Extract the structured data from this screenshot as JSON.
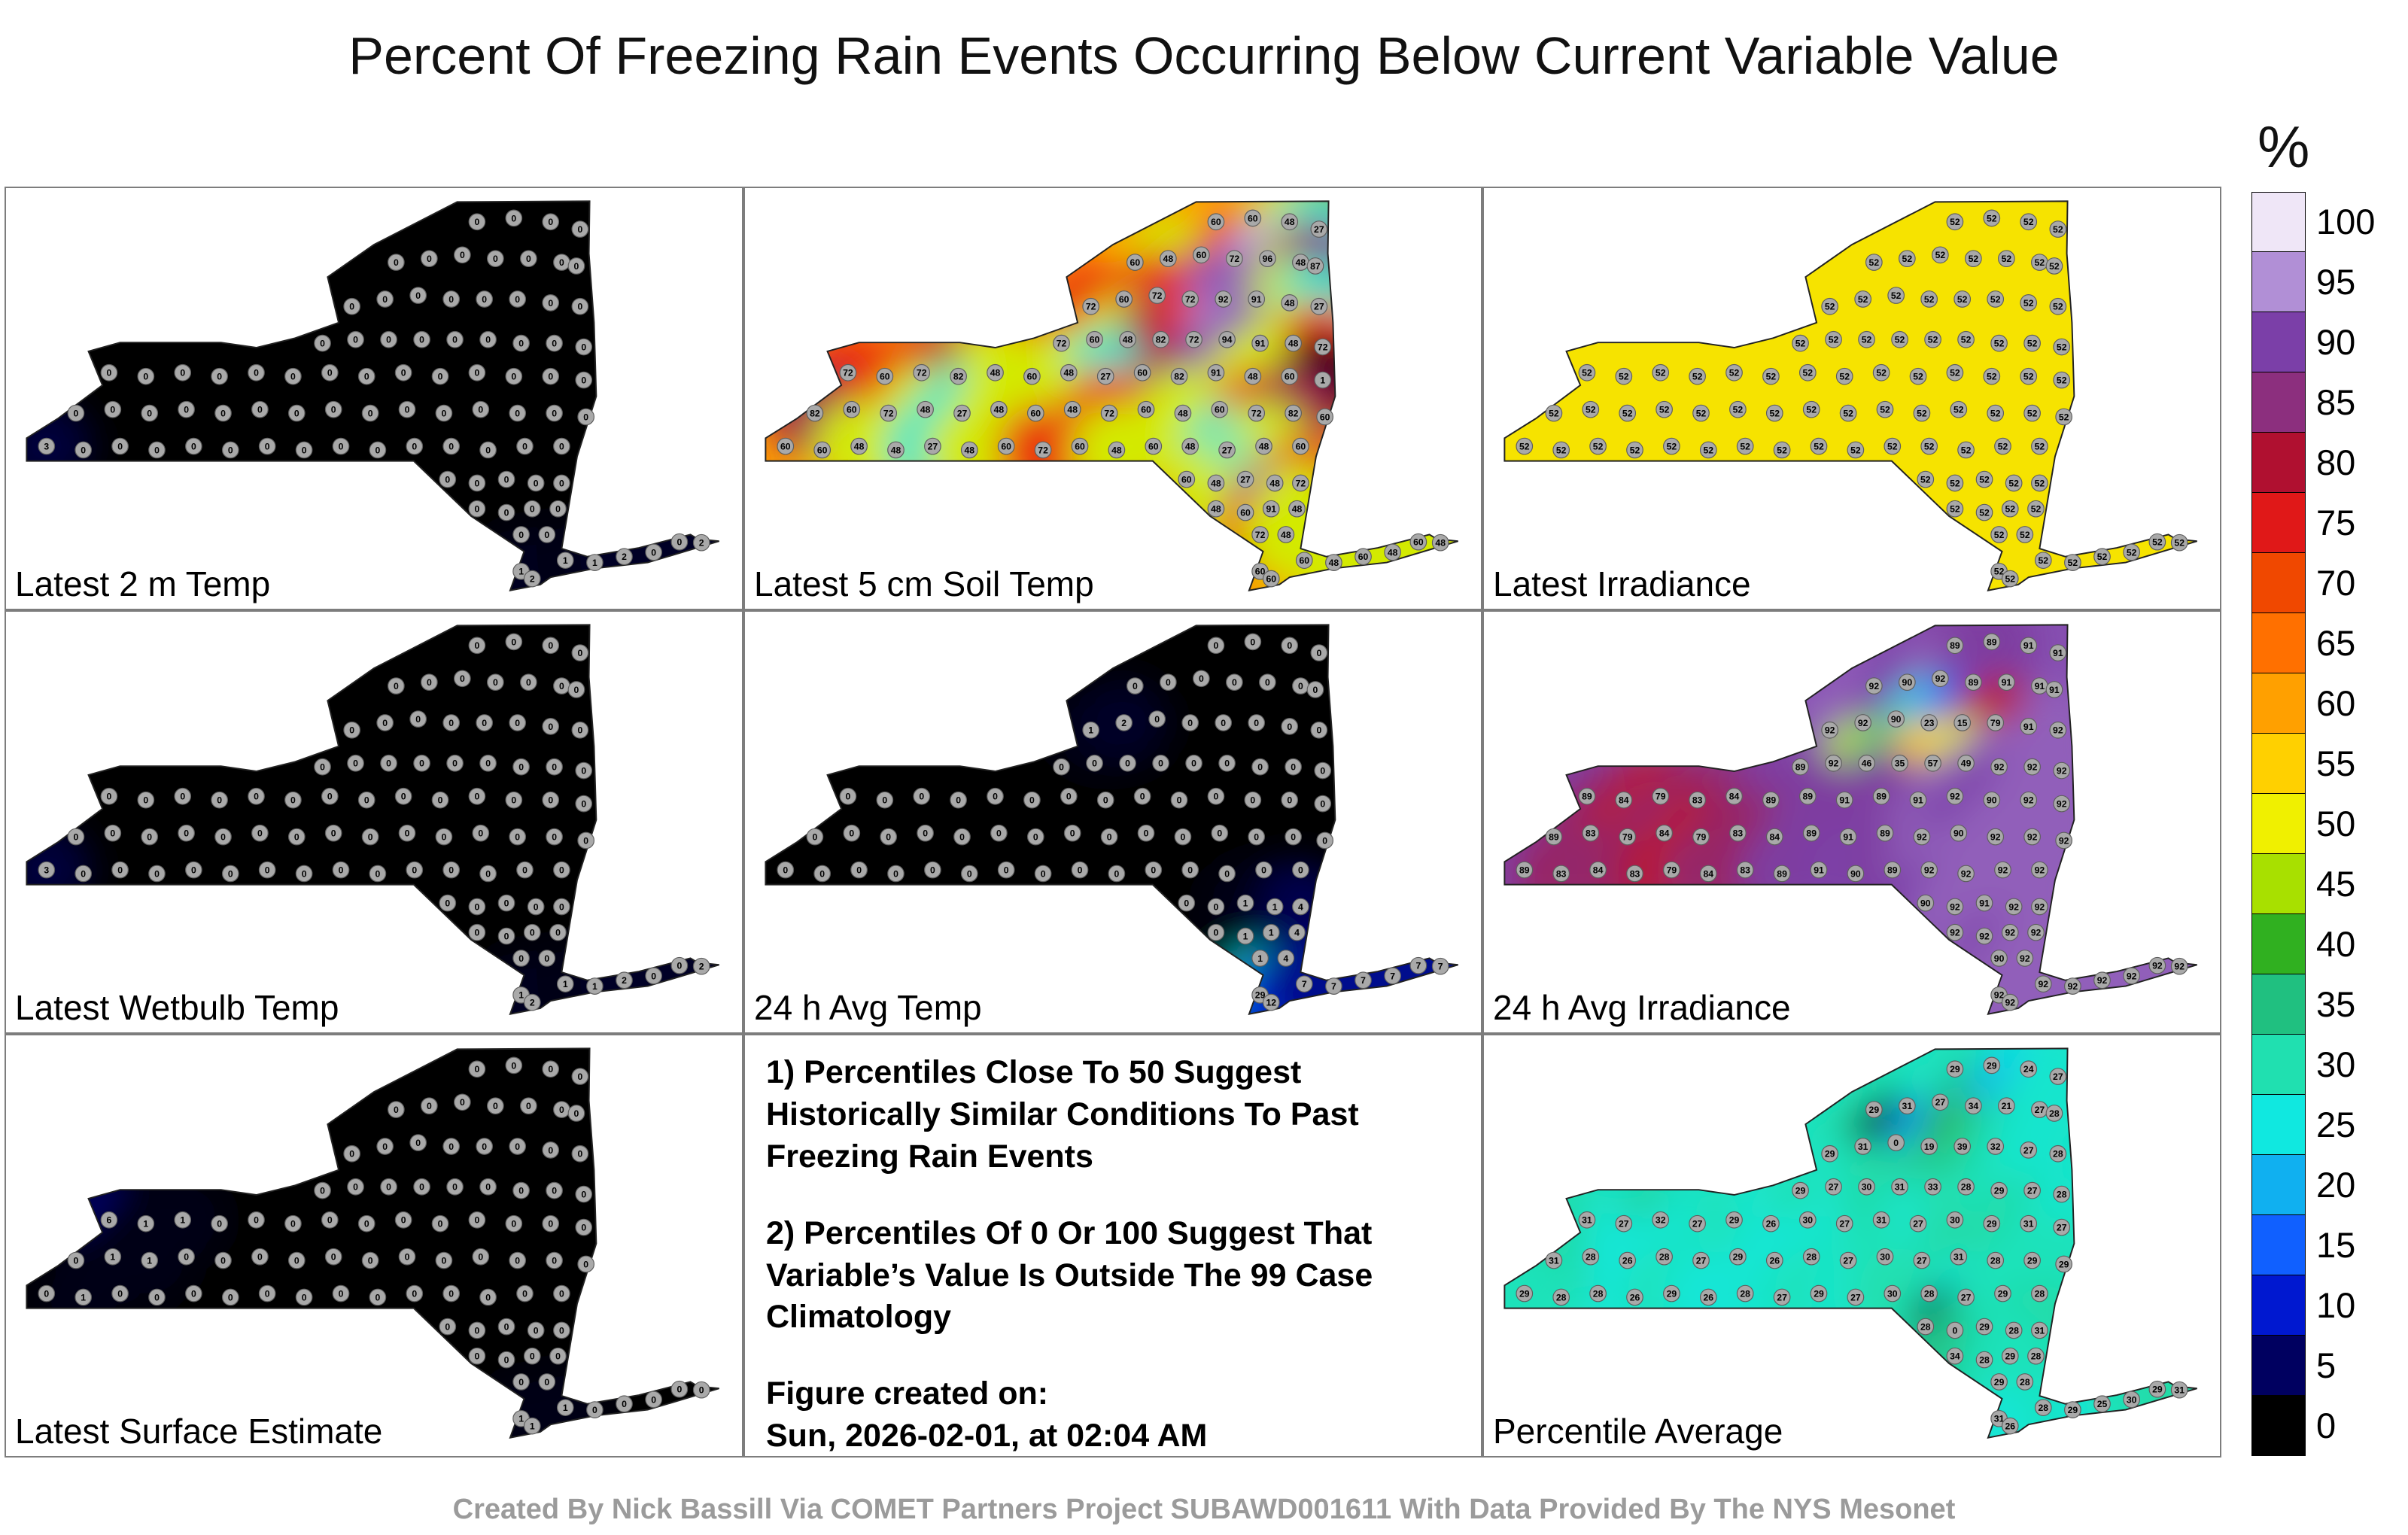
{
  "title": "Percent Of Freezing Rain Events Occurring Below Current Variable Value",
  "credit": "Created By Nick Bassill Via COMET Partners Project SUBAWD001611 With Data Provided By The NYS Mesonet",
  "colorbar": {
    "label": "%",
    "ticks": [
      100,
      95,
      90,
      85,
      80,
      75,
      70,
      65,
      60,
      55,
      50,
      45,
      40,
      35,
      30,
      25,
      20,
      15,
      10,
      5,
      0
    ]
  },
  "notes": {
    "point1": "1) Percentiles Close To 50 Suggest Historically Similar Conditions To Past Freezing Rain Events",
    "point2": "2) Percentiles Of 0 Or 100 Suggest That Variable’s Value Is Outside The 99 Case Climatology",
    "created_label": "Figure created on:",
    "created_value": "Sun, 2026-02-01, at 02:04 AM"
  },
  "chart_data": {
    "type": "heatmap",
    "title": "Percent Of Freezing Rain Events Occurring Below Current Variable Value",
    "subtitle": "Station percentile maps of New York State (NYS Mesonet), 3x3 panel grid with shared 0-100% colorbar",
    "legend_position": "right",
    "value_range": [
      0,
      100
    ],
    "colormap_stops": [
      [
        0,
        "#000000"
      ],
      [
        5,
        "#000060"
      ],
      [
        10,
        "#0018d0"
      ],
      [
        15,
        "#1060ff"
      ],
      [
        20,
        "#10b0f0"
      ],
      [
        25,
        "#10e8e0"
      ],
      [
        30,
        "#20e0b0"
      ],
      [
        35,
        "#20c080"
      ],
      [
        40,
        "#30b020"
      ],
      [
        45,
        "#a8e000"
      ],
      [
        50,
        "#f0f000"
      ],
      [
        55,
        "#ffd000"
      ],
      [
        60,
        "#ffa000"
      ],
      [
        65,
        "#ff7000"
      ],
      [
        70,
        "#f04800"
      ],
      [
        75,
        "#e01818"
      ],
      [
        80,
        "#b01030"
      ],
      [
        85,
        "#8c2f7e"
      ],
      [
        90,
        "#7b3fa8"
      ],
      [
        95,
        "#b18fd6"
      ],
      [
        100,
        "#efe6f7"
      ]
    ],
    "station_positions": [
      [
        640,
        45
      ],
      [
        690,
        40
      ],
      [
        740,
        45
      ],
      [
        780,
        55
      ],
      [
        530,
        100
      ],
      [
        575,
        95
      ],
      [
        620,
        90
      ],
      [
        665,
        95
      ],
      [
        710,
        95
      ],
      [
        755,
        100
      ],
      [
        775,
        105
      ],
      [
        470,
        160
      ],
      [
        515,
        150
      ],
      [
        560,
        145
      ],
      [
        605,
        150
      ],
      [
        650,
        150
      ],
      [
        695,
        150
      ],
      [
        740,
        155
      ],
      [
        780,
        160
      ],
      [
        430,
        210
      ],
      [
        475,
        205
      ],
      [
        520,
        205
      ],
      [
        565,
        205
      ],
      [
        610,
        205
      ],
      [
        655,
        205
      ],
      [
        700,
        210
      ],
      [
        745,
        210
      ],
      [
        785,
        215
      ],
      [
        140,
        250
      ],
      [
        190,
        255
      ],
      [
        240,
        250
      ],
      [
        290,
        255
      ],
      [
        340,
        250
      ],
      [
        390,
        255
      ],
      [
        440,
        250
      ],
      [
        490,
        255
      ],
      [
        540,
        250
      ],
      [
        590,
        255
      ],
      [
        640,
        250
      ],
      [
        690,
        255
      ],
      [
        740,
        255
      ],
      [
        785,
        260
      ],
      [
        95,
        305
      ],
      [
        145,
        300
      ],
      [
        195,
        305
      ],
      [
        245,
        300
      ],
      [
        295,
        305
      ],
      [
        345,
        300
      ],
      [
        395,
        305
      ],
      [
        445,
        300
      ],
      [
        495,
        305
      ],
      [
        545,
        300
      ],
      [
        595,
        305
      ],
      [
        645,
        300
      ],
      [
        695,
        305
      ],
      [
        745,
        305
      ],
      [
        788,
        310
      ],
      [
        55,
        350
      ],
      [
        105,
        355
      ],
      [
        155,
        350
      ],
      [
        205,
        355
      ],
      [
        255,
        350
      ],
      [
        305,
        355
      ],
      [
        355,
        350
      ],
      [
        405,
        355
      ],
      [
        455,
        350
      ],
      [
        505,
        355
      ],
      [
        555,
        350
      ],
      [
        605,
        350
      ],
      [
        655,
        355
      ],
      [
        705,
        350
      ],
      [
        755,
        350
      ],
      [
        600,
        395
      ],
      [
        640,
        400
      ],
      [
        680,
        395
      ],
      [
        720,
        400
      ],
      [
        755,
        400
      ],
      [
        640,
        435
      ],
      [
        680,
        440
      ],
      [
        715,
        435
      ],
      [
        750,
        435
      ],
      [
        700,
        470
      ],
      [
        735,
        470
      ],
      [
        700,
        520
      ],
      [
        715,
        530
      ],
      [
        760,
        505
      ],
      [
        800,
        508
      ],
      [
        840,
        500
      ],
      [
        880,
        494
      ],
      [
        915,
        480
      ],
      [
        945,
        481
      ]
    ],
    "panels": [
      {
        "kind": "map",
        "label": "Latest 2 m Temp",
        "base_value": 0,
        "values": [
          0,
          0,
          0,
          0,
          0,
          0,
          0,
          0,
          0,
          0,
          0,
          0,
          0,
          0,
          0,
          0,
          0,
          0,
          0,
          0,
          0,
          0,
          0,
          0,
          0,
          0,
          0,
          0,
          0,
          0,
          0,
          0,
          0,
          0,
          0,
          0,
          0,
          0,
          0,
          0,
          0,
          0,
          0,
          0,
          0,
          0,
          0,
          0,
          0,
          0,
          0,
          0,
          0,
          0,
          0,
          0,
          0,
          3,
          0,
          0,
          0,
          0,
          0,
          0,
          0,
          0,
          0,
          0,
          0,
          0,
          0,
          0,
          0,
          0,
          0,
          0,
          0,
          0,
          0,
          0,
          0,
          0,
          0,
          1,
          2,
          1,
          1,
          2,
          0,
          0,
          2
        ]
      },
      {
        "kind": "map",
        "label": "Latest 5 cm Soil Temp",
        "base_value": 60,
        "values": [
          60,
          60,
          48,
          27,
          60,
          48,
          60,
          72,
          96,
          48,
          87,
          72,
          60,
          72,
          72,
          92,
          91,
          48,
          27,
          72,
          60,
          48,
          82,
          72,
          94,
          91,
          48,
          72,
          72,
          60,
          72,
          82,
          48,
          60,
          48,
          27,
          60,
          82,
          91,
          48,
          60,
          1,
          82,
          60,
          72,
          48,
          27,
          48,
          60,
          48,
          72,
          60,
          48,
          60,
          72,
          82,
          60,
          60,
          60,
          48,
          48,
          27,
          48,
          60,
          72,
          60,
          48,
          60,
          48,
          27,
          48,
          60,
          60,
          48,
          27,
          48,
          72,
          48,
          60,
          91,
          48,
          72,
          48,
          60,
          60,
          60,
          48,
          60,
          48,
          60,
          48
        ]
      },
      {
        "kind": "map",
        "label": "Latest Irradiance",
        "base_value": 52,
        "values": [
          52,
          52,
          52,
          52,
          52,
          52,
          52,
          52,
          52,
          52,
          52,
          52,
          52,
          52,
          52,
          52,
          52,
          52,
          52,
          52,
          52,
          52,
          52,
          52,
          52,
          52,
          52,
          52,
          52,
          52,
          52,
          52,
          52,
          52,
          52,
          52,
          52,
          52,
          52,
          52,
          52,
          52,
          52,
          52,
          52,
          52,
          52,
          52,
          52,
          52,
          52,
          52,
          52,
          52,
          52,
          52,
          52,
          52,
          52,
          52,
          52,
          52,
          52,
          52,
          52,
          52,
          52,
          52,
          52,
          52,
          52,
          52,
          52,
          52,
          52,
          52,
          52,
          52,
          52,
          52,
          52,
          52,
          52,
          52,
          52,
          52,
          52,
          52,
          52,
          52,
          52
        ]
      },
      {
        "kind": "map",
        "label": "Latest Wetbulb Temp",
        "base_value": 0,
        "values": [
          0,
          0,
          0,
          0,
          0,
          0,
          0,
          0,
          0,
          0,
          0,
          0,
          0,
          0,
          0,
          0,
          0,
          0,
          0,
          0,
          0,
          0,
          0,
          0,
          0,
          0,
          0,
          0,
          0,
          0,
          0,
          0,
          0,
          0,
          0,
          0,
          0,
          0,
          0,
          0,
          0,
          0,
          0,
          0,
          0,
          0,
          0,
          0,
          0,
          0,
          0,
          0,
          0,
          0,
          0,
          0,
          0,
          3,
          0,
          0,
          0,
          0,
          0,
          0,
          0,
          0,
          0,
          0,
          0,
          0,
          0,
          0,
          0,
          0,
          0,
          0,
          0,
          0,
          0,
          0,
          0,
          0,
          0,
          1,
          2,
          1,
          1,
          2,
          0,
          0,
          2
        ]
      },
      {
        "kind": "map",
        "label": "24 h Avg Temp",
        "base_value": 0,
        "values": [
          0,
          0,
          0,
          0,
          0,
          0,
          0,
          0,
          0,
          0,
          0,
          1,
          2,
          0,
          0,
          0,
          0,
          0,
          0,
          0,
          0,
          0,
          0,
          0,
          0,
          0,
          0,
          0,
          0,
          0,
          0,
          0,
          0,
          0,
          0,
          0,
          0,
          0,
          0,
          0,
          0,
          0,
          0,
          0,
          0,
          0,
          0,
          0,
          0,
          0,
          0,
          0,
          0,
          0,
          0,
          0,
          0,
          0,
          0,
          0,
          0,
          0,
          0,
          0,
          0,
          0,
          0,
          0,
          0,
          0,
          0,
          0,
          0,
          0,
          1,
          1,
          4,
          0,
          1,
          1,
          4,
          1,
          4,
          29,
          12,
          7,
          7,
          7,
          7,
          7,
          7
        ]
      },
      {
        "kind": "map",
        "label": "24 h Avg Irradiance",
        "base_value": 91,
        "values": [
          89,
          89,
          91,
          91,
          92,
          90,
          92,
          89,
          91,
          91,
          91,
          92,
          92,
          90,
          23,
          15,
          79,
          91,
          92,
          89,
          92,
          46,
          35,
          57,
          49,
          92,
          92,
          92,
          89,
          84,
          79,
          83,
          84,
          89,
          89,
          91,
          89,
          91,
          92,
          90,
          92,
          92,
          89,
          83,
          79,
          84,
          79,
          83,
          84,
          89,
          91,
          89,
          92,
          90,
          92,
          92,
          92,
          89,
          83,
          84,
          83,
          79,
          84,
          83,
          89,
          91,
          90,
          89,
          92,
          92,
          92,
          92,
          90,
          92,
          91,
          92,
          92,
          92,
          92,
          92,
          92,
          90,
          92,
          92,
          92,
          92,
          92,
          92,
          92,
          92,
          92
        ]
      },
      {
        "kind": "map",
        "label": "Latest Surface Estimate",
        "base_value": 0,
        "values": [
          0,
          0,
          0,
          0,
          0,
          0,
          0,
          0,
          0,
          0,
          0,
          0,
          0,
          0,
          0,
          0,
          0,
          0,
          0,
          0,
          0,
          0,
          0,
          0,
          0,
          0,
          0,
          0,
          6,
          1,
          1,
          0,
          0,
          0,
          0,
          0,
          0,
          0,
          0,
          0,
          0,
          0,
          0,
          1,
          1,
          0,
          0,
          0,
          0,
          0,
          0,
          0,
          0,
          0,
          0,
          0,
          0,
          0,
          1,
          0,
          0,
          0,
          0,
          0,
          0,
          0,
          0,
          0,
          0,
          0,
          0,
          0,
          0,
          0,
          0,
          0,
          0,
          0,
          0,
          0,
          0,
          0,
          0,
          1,
          1,
          1,
          0,
          0,
          0,
          0,
          0
        ]
      },
      {
        "kind": "notes",
        "label": ""
      },
      {
        "kind": "map",
        "label": "Percentile Average",
        "base_value": 28,
        "values": [
          29,
          29,
          24,
          27,
          29,
          31,
          27,
          34,
          21,
          27,
          28,
          29,
          31,
          0,
          19,
          39,
          32,
          27,
          28,
          29,
          27,
          30,
          31,
          33,
          28,
          29,
          27,
          28,
          31,
          27,
          32,
          27,
          29,
          26,
          30,
          27,
          31,
          27,
          30,
          29,
          31,
          27,
          31,
          28,
          26,
          28,
          27,
          29,
          26,
          28,
          27,
          30,
          27,
          31,
          28,
          29,
          29,
          29,
          28,
          28,
          26,
          29,
          26,
          28,
          27,
          29,
          27,
          30,
          28,
          27,
          29,
          28,
          28,
          0,
          29,
          28,
          31,
          34,
          28,
          29,
          28,
          29,
          28,
          31,
          26,
          28,
          29,
          25,
          30,
          29,
          31
        ]
      }
    ]
  }
}
